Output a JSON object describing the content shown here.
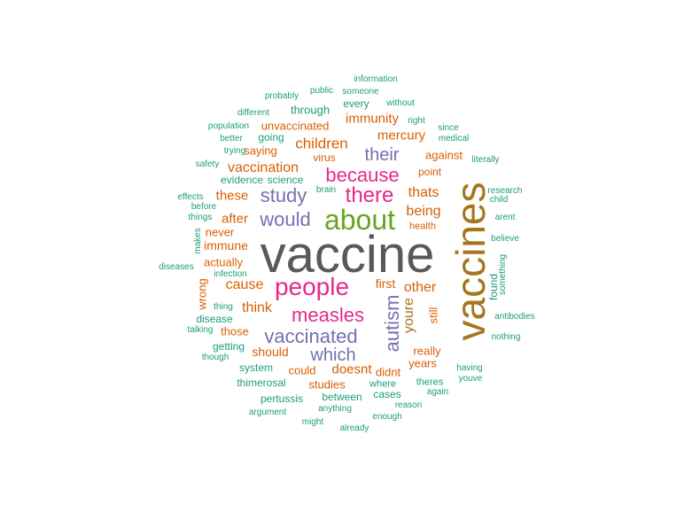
{
  "palette": {
    "gray": "#595959",
    "gold": "#a6761d",
    "green": "#66a61e",
    "magenta": "#e7298a",
    "purple": "#7570b3",
    "orange": "#d95f02",
    "teal": "#1b9e77"
  },
  "words": [
    "vaccine",
    "vaccines",
    "about",
    "people",
    "there",
    "because",
    "measles",
    "would",
    "study",
    "their",
    "vaccinated",
    "autism",
    "which",
    "youre",
    "children",
    "being",
    "thats",
    "other",
    "cause",
    "think",
    "after",
    "these",
    "vaccination",
    "immunity",
    "mercury",
    "doesnt",
    "first",
    "really",
    "should",
    "years",
    "studies",
    "could",
    "didnt",
    "still",
    "against",
    "unvaccinated",
    "through",
    "every",
    "saying",
    "going",
    "actually",
    "point",
    "virus",
    "immune",
    "never",
    "health",
    "those",
    "wrong",
    "getting",
    "disease",
    "evidence",
    "science",
    "system",
    "between",
    "thimerosal",
    "pertussis",
    "cases",
    "found",
    "where",
    "theres",
    "having",
    "information",
    "probably",
    "public",
    "someone",
    "without",
    "different",
    "population",
    "right",
    "since",
    "better",
    "medical",
    "trying",
    "literally",
    "safety",
    "effects",
    "brain",
    "research",
    "before",
    "child",
    "things",
    "arent",
    "makes",
    "believe",
    "diseases",
    "infection",
    "something",
    "thing",
    "antibodies",
    "talking",
    "nothing",
    "though",
    "youve",
    "again",
    "argument",
    "anything",
    "reason",
    "enough",
    "might",
    "already"
  ]
}
